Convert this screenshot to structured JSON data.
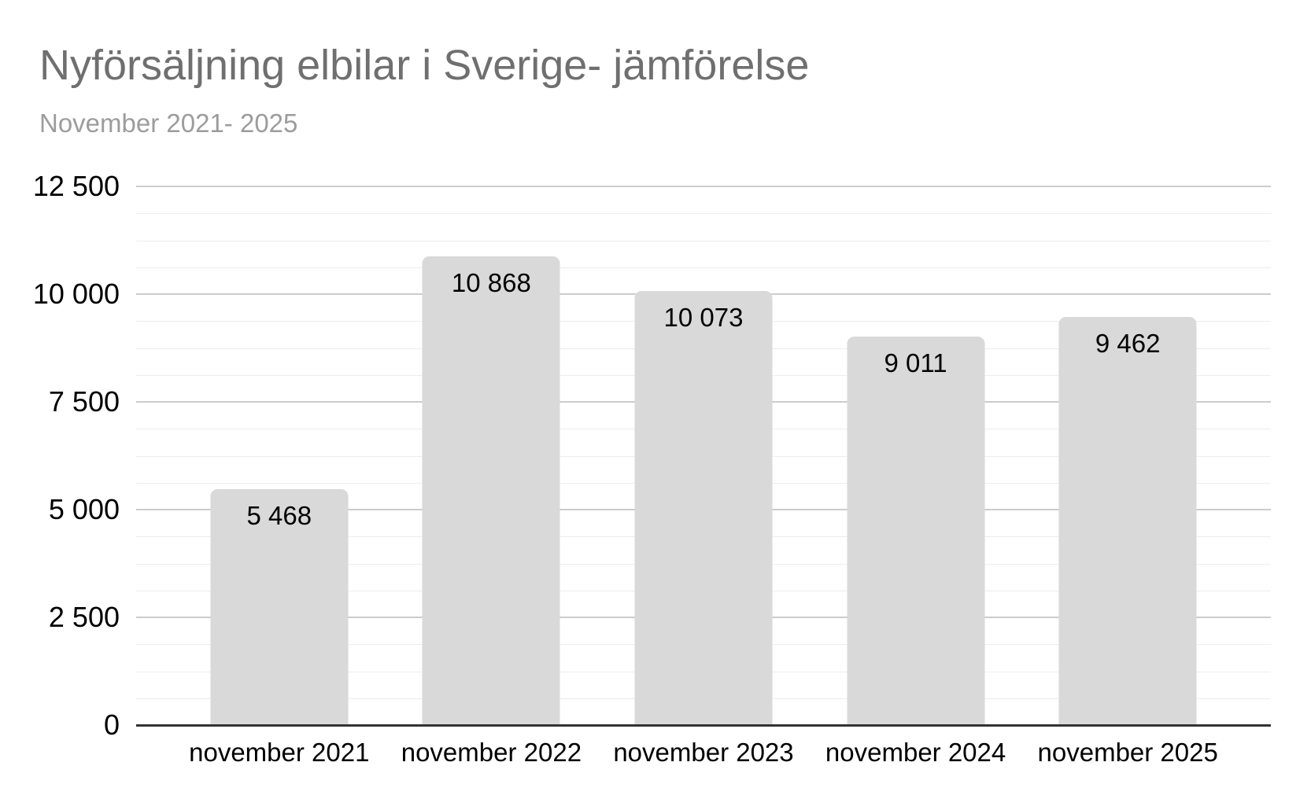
{
  "chart_data": {
    "type": "bar",
    "title": "Nyförsäljning elbilar i Sverige- jämförelse",
    "subtitle": "November 2021- 2025",
    "categories": [
      "november 2021",
      "november 2022",
      "november 2023",
      "november 2024",
      "november 2025"
    ],
    "values": [
      5468,
      10868,
      10073,
      9011,
      9462
    ],
    "value_labels": [
      "5 468",
      "10 868",
      "10 073",
      "9 011",
      "9 462"
    ],
    "ylim": [
      0,
      12500
    ],
    "y_major_step": 2500,
    "y_minor_step": 625,
    "y_ticks": [
      {
        "value": 0,
        "label": "0"
      },
      {
        "value": 2500,
        "label": "2 500"
      },
      {
        "value": 5000,
        "label": "5 000"
      },
      {
        "value": 7500,
        "label": "7 500"
      },
      {
        "value": 10000,
        "label": "10 000"
      },
      {
        "value": 12500,
        "label": "12 500"
      }
    ],
    "grid": true,
    "legend": "none",
    "colors": {
      "bar": "#d9d9d9",
      "value_label": "#000000",
      "tick_label": "#000000",
      "axis_line": "#333333",
      "major_gridline": "#cccccc",
      "minor_gridline": "#ededed",
      "title": "#6f6f6f",
      "subtitle": "#9c9c9c",
      "background": "#ffffff"
    }
  }
}
